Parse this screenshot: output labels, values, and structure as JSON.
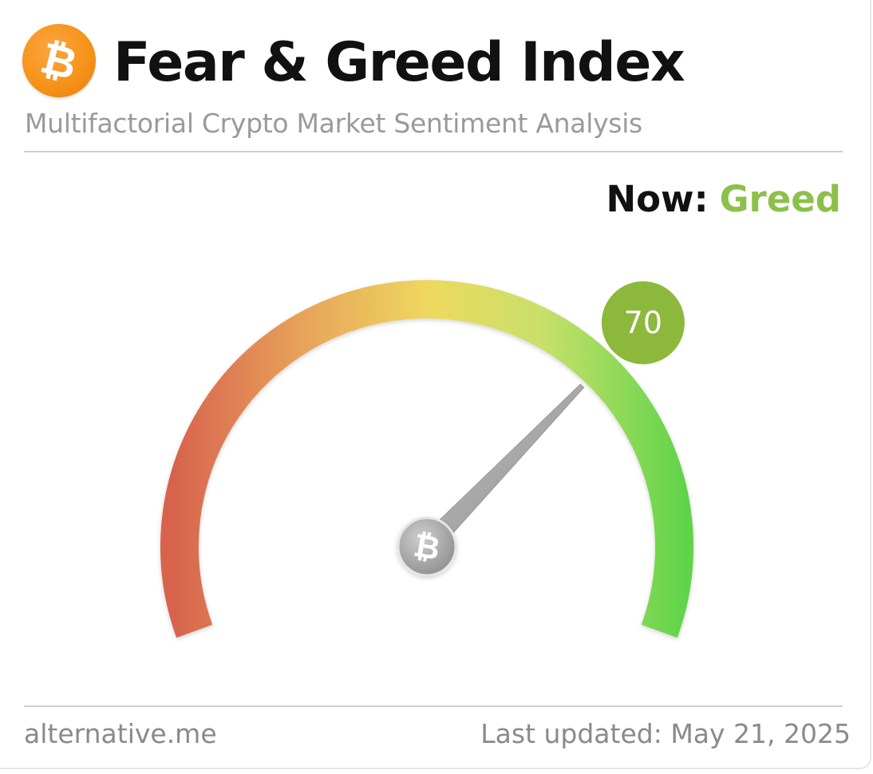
{
  "header": {
    "logo_icon": "bitcoin-icon",
    "title": "Fear & Greed Index",
    "subtitle": "Multifactorial Crypto Market Sentiment Analysis"
  },
  "status": {
    "now_label": "Now:",
    "now_value": "Greed",
    "now_color": "#8cc04b"
  },
  "gauge": {
    "value": 70,
    "value_text": "70",
    "min": 0,
    "max": 100,
    "value_color": "#8cb83c",
    "gradient_colors": [
      "#d7644e",
      "#e8a35a",
      "#eed95f",
      "#c8e06a",
      "#5fd44a"
    ],
    "needle_icon": "bitcoin-icon"
  },
  "footer": {
    "source": "alternative.me",
    "last_updated": "Last updated: May 21, 2025"
  }
}
